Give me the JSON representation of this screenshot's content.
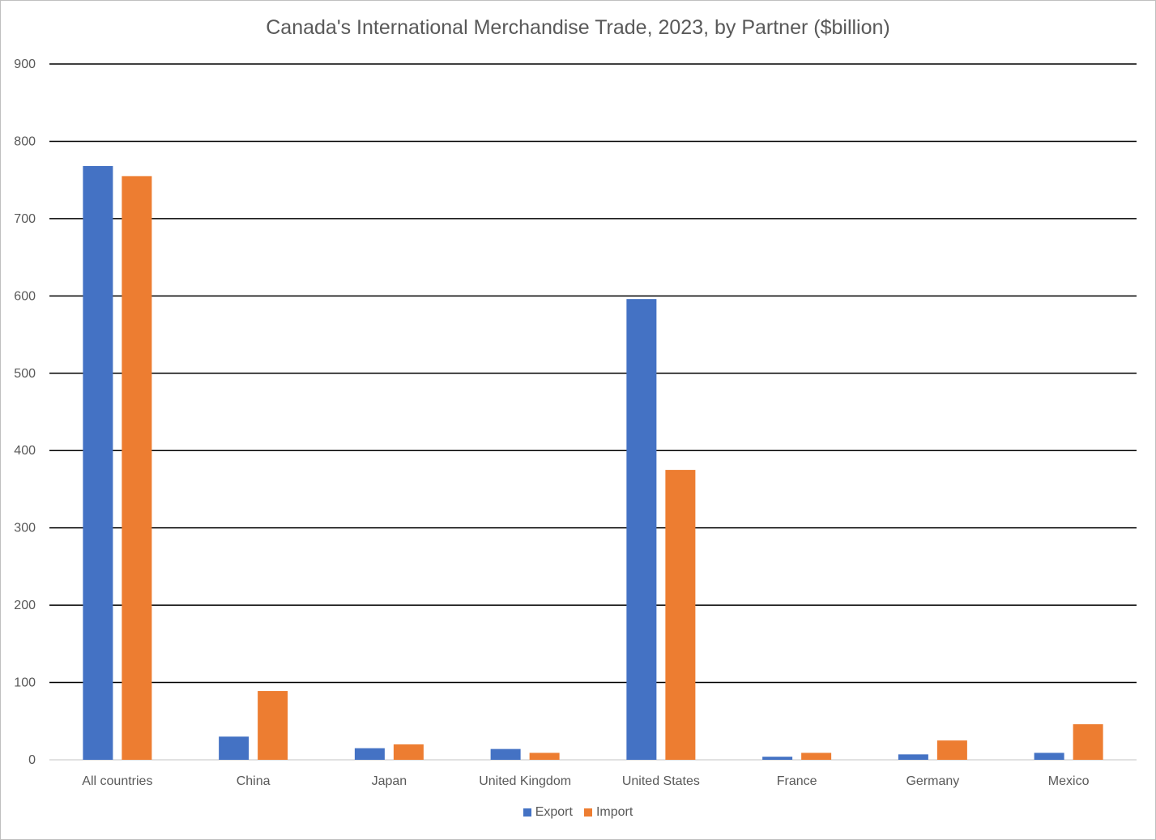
{
  "chart_data": {
    "type": "bar",
    "title": "Canada's International Merchandise Trade, 2023, by Partner ($billion)",
    "xlabel": "",
    "ylabel": "",
    "ylim": [
      0,
      900
    ],
    "yticks": [
      0,
      100,
      200,
      300,
      400,
      500,
      600,
      700,
      800,
      900
    ],
    "grid": true,
    "legend_position": "bottom",
    "categories": [
      "All countries",
      "China",
      "Japan",
      "United Kingdom",
      "United States",
      "France",
      "Germany",
      "Mexico"
    ],
    "series": [
      {
        "name": "Export",
        "color": "#4472c4",
        "values": [
          768,
          30,
          15,
          14,
          596,
          4,
          7,
          9
        ]
      },
      {
        "name": "Import",
        "color": "#ed7d31",
        "values": [
          755,
          89,
          20,
          9,
          375,
          9,
          25,
          46
        ]
      }
    ]
  }
}
